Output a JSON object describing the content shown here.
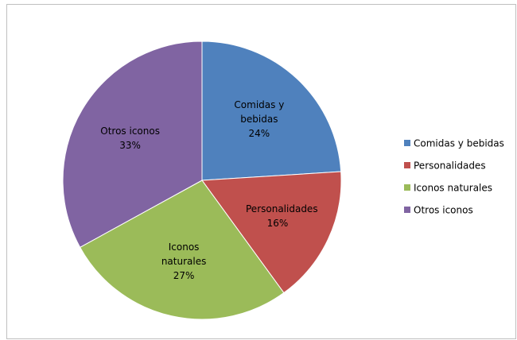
{
  "chart_data": {
    "type": "pie",
    "categories": [
      "Comidas y bebidas",
      "Personalidades",
      "Iconos naturales",
      "Otros iconos"
    ],
    "values": [
      24,
      16,
      27,
      33
    ],
    "value_labels": [
      "24%",
      "16%",
      "27%",
      "33%"
    ],
    "colors": [
      "#4f81bd",
      "#c0504d",
      "#9bbb59",
      "#8064a2"
    ],
    "legend": "right"
  }
}
